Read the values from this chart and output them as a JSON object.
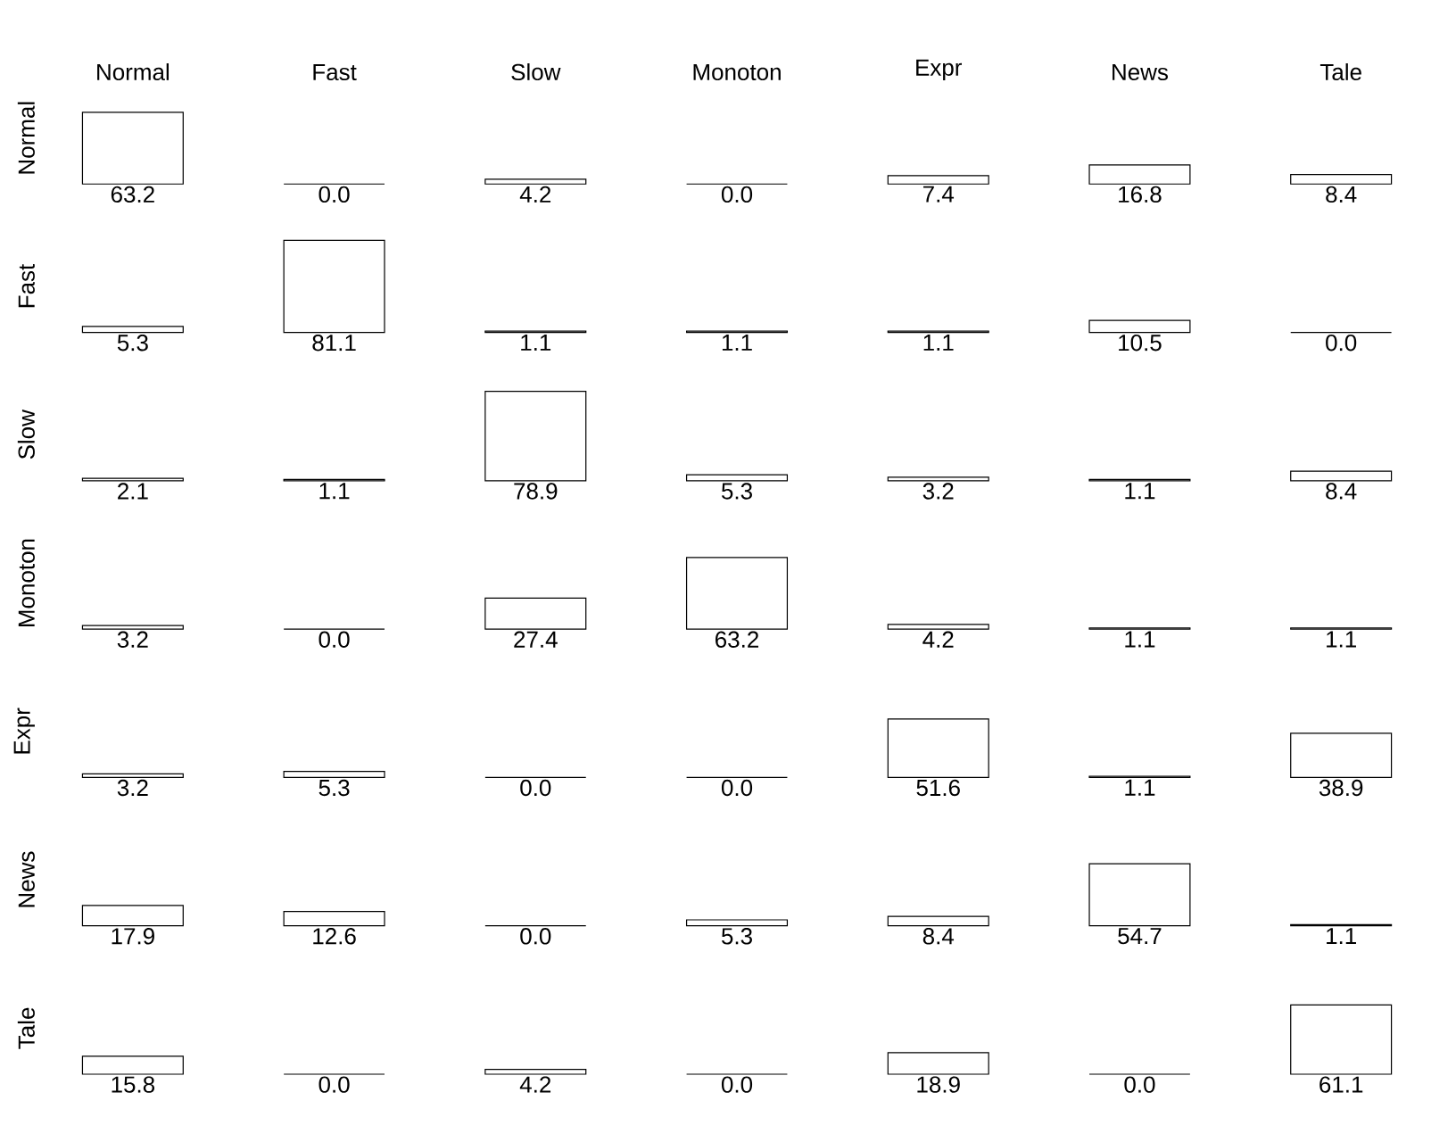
{
  "chart_data": [
    {
      "type": "bar",
      "ylabel": "Normal",
      "categories": [
        "Normal",
        "Fast",
        "Slow",
        "Monoton",
        "Expr",
        "News",
        "Tale"
      ],
      "values": [
        63.2,
        0.0,
        4.2,
        0.0,
        7.4,
        16.8,
        8.4
      ],
      "value_labels": [
        "63.2",
        "0.0",
        "4.2",
        "0.0",
        "7.4",
        "16.8",
        "8.4"
      ],
      "colors": [
        "#ffffff",
        "#000000",
        "#ffffff",
        "#000000",
        "#ffffff",
        "#ffffff",
        "#ffffff"
      ]
    },
    {
      "type": "bar",
      "ylabel": "Fast",
      "categories": [
        null,
        null,
        null,
        null,
        null,
        null,
        null
      ],
      "values": [
        5.3,
        81.1,
        1.1,
        1.1,
        1.1,
        10.5,
        0.0
      ],
      "value_labels": [
        "5.3",
        "81.1",
        "1.1",
        "1.1",
        "1.1",
        "10.5",
        "0.0"
      ],
      "colors": [
        "#ffffff",
        "#ffffff",
        "#ffffff",
        "#ffffff",
        "#ffffff",
        "#ffffff",
        "#000000"
      ]
    },
    {
      "type": "bar",
      "ylabel": "Slow",
      "categories": [
        null,
        null,
        null,
        null,
        null,
        null,
        null
      ],
      "values": [
        2.1,
        1.1,
        78.9,
        5.3,
        3.2,
        1.1,
        8.4
      ],
      "value_labels": [
        "2.1",
        "1.1",
        "78.9",
        "5.3",
        "3.2",
        "1.1",
        "8.4"
      ],
      "colors": [
        "#ffffff",
        "#ffffff",
        "#ffffff",
        "#ffffff",
        "#ffffff",
        "#ffffff",
        "#ffffff"
      ]
    },
    {
      "type": "bar",
      "ylabel": "Monoton",
      "categories": [
        null,
        null,
        null,
        null,
        null,
        null,
        null
      ],
      "values": [
        3.2,
        0.0,
        27.4,
        63.2,
        4.2,
        1.1,
        1.1
      ],
      "value_labels": [
        "3.2",
        "0.0",
        "27.4",
        "63.2",
        "4.2",
        "1.1",
        "1.1"
      ],
      "colors": [
        "#ffffff",
        "#000000",
        "#ffffff",
        "#ffffff",
        "#ffffff",
        "#ffffff",
        "#ffffff"
      ]
    },
    {
      "type": "bar",
      "ylabel": "Expr",
      "categories": [
        null,
        null,
        null,
        null,
        null,
        null,
        null
      ],
      "values": [
        3.2,
        5.3,
        0.0,
        0.0,
        51.6,
        1.1,
        38.9
      ],
      "value_labels": [
        "3.2",
        "5.3",
        "0.0",
        "0.0",
        "51.6",
        "1.1",
        "38.9"
      ],
      "colors": [
        "#ffffff",
        "#ffffff",
        "#000000",
        "#000000",
        "#ffffff",
        "#ffffff",
        "#ffffff"
      ]
    },
    {
      "type": "bar",
      "ylabel": "News",
      "categories": [
        null,
        null,
        null,
        null,
        null,
        null,
        null
      ],
      "values": [
        17.9,
        12.6,
        0.0,
        5.3,
        8.4,
        54.7,
        1.1
      ],
      "value_labels": [
        "17.9",
        "12.6",
        "0.0",
        "5.3",
        "8.4",
        "54.7",
        "1.1"
      ],
      "colors": [
        "#ffffff",
        "#ffffff",
        "#000000",
        "#ffffff",
        "#ffffff",
        "#ffffff",
        "#ffffff"
      ]
    },
    {
      "type": "bar",
      "ylabel": "Tale",
      "categories": [
        null,
        null,
        null,
        null,
        null,
        null,
        null
      ],
      "values": [
        15.8,
        0.0,
        4.2,
        0.0,
        18.9,
        0.0,
        61.1
      ],
      "value_labels": [
        "15.8",
        "0.0",
        "4.2",
        "0.0",
        "18.9",
        "0.0",
        "61.1"
      ],
      "colors": [
        "#ffffff",
        "#000000",
        "#ffffff",
        "#000000",
        "#ffffff",
        "#000000",
        "#ffffff"
      ]
    }
  ]
}
